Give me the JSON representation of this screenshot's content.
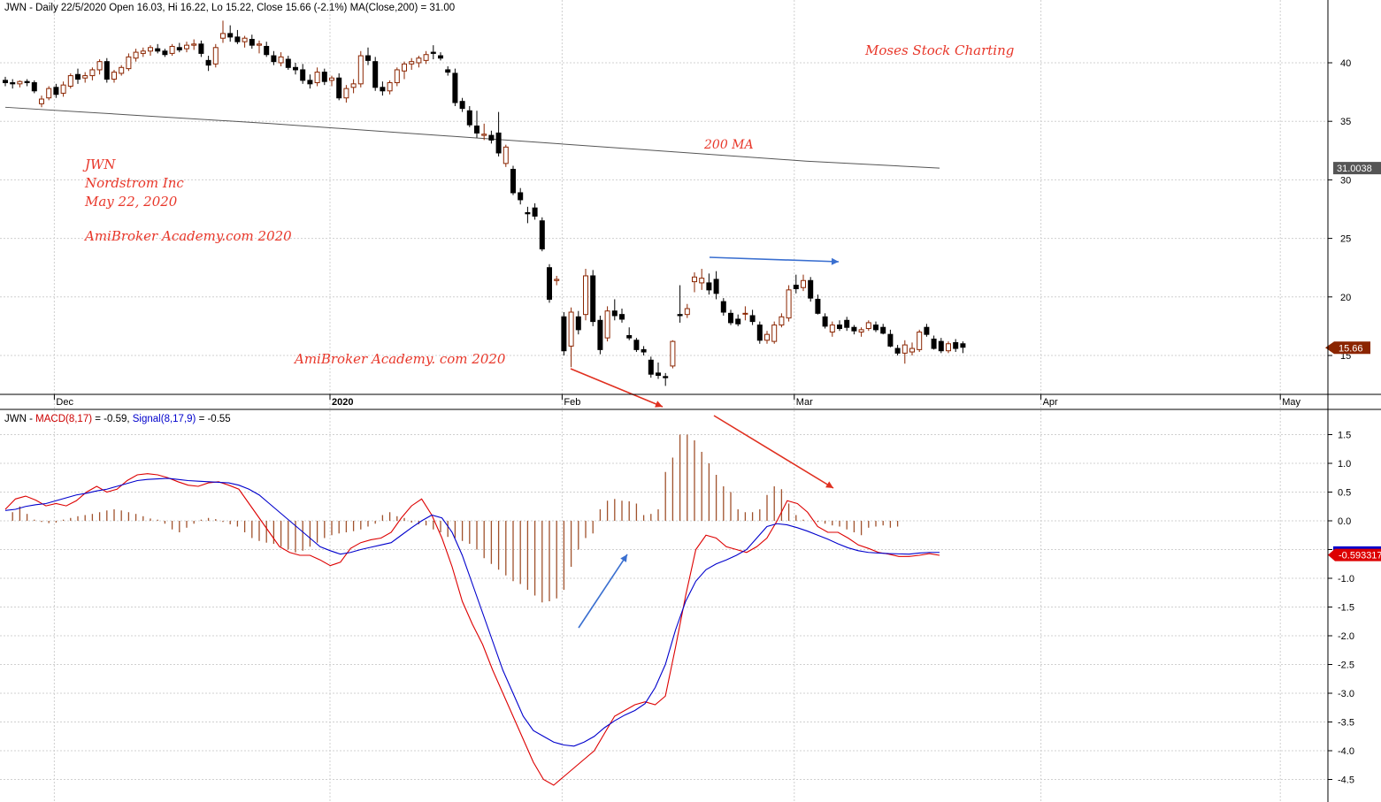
{
  "header": {
    "price_title_parts": [
      {
        "text": "JWN - Daily 22/5/2020 Open 16.03, Hi 16.22, Lo 15.22, Close 15.66 (-2.1%) ",
        "color": "#000000"
      },
      {
        "text": "MA(Close,200) = 31.00",
        "color": "#000000"
      }
    ],
    "macd_title_parts": [
      {
        "text": "JWN - ",
        "color": "#000000"
      },
      {
        "text": "MACD(8,17)",
        "color": "#cc0000"
      },
      {
        "text": " = -0.59, ",
        "color": "#000000"
      },
      {
        "text": "Signal(8,17,9)",
        "color": "#0000cc"
      },
      {
        "text": " = -0.55",
        "color": "#000000"
      }
    ]
  },
  "annotations": {
    "brand": "Moses Stock Charting",
    "ma_label": "200 MA",
    "ticker": "JWN",
    "company": "Nordstrom Inc",
    "date": "May 22, 2020",
    "site1": "AmiBroker Academy.com  2020",
    "site2": "AmiBroker Academy. com  2020"
  },
  "colors": {
    "up": "#8b2500",
    "down": "#000000",
    "macd": "#dd0000",
    "signal": "#0000cc",
    "histogram": "#a0522d",
    "ma": "#555555",
    "arrow_red": "#e03020",
    "arrow_blue": "#3a6fd0",
    "annotation": "#e8372a",
    "grid": "#d0d0d0"
  },
  "chart_data": [
    {
      "type": "candlestick",
      "title": "JWN - Daily 22/5/2020",
      "ylim": [
        11,
        45
      ],
      "yticks": [
        15,
        20,
        25,
        30,
        35,
        40
      ],
      "x_labels": [
        "Dec",
        "2020",
        "Feb",
        "Mar",
        "Apr",
        "May"
      ],
      "x_label_index": [
        7,
        45,
        77,
        109,
        143,
        176
      ],
      "ma200": [
        36.2,
        35.5,
        34.8,
        34.0,
        33.2,
        32.4,
        31.6,
        31.0
      ],
      "price_marker": "15.66",
      "ma_marker": "31.0038",
      "ohlc": [
        [
          38.5,
          38.8,
          38.0,
          38.3
        ],
        [
          38.3,
          38.6,
          37.8,
          38.2
        ],
        [
          38.2,
          38.5,
          37.9,
          38.4
        ],
        [
          38.4,
          38.6,
          38.0,
          38.3
        ],
        [
          38.3,
          38.5,
          37.4,
          37.6
        ],
        [
          36.5,
          37.2,
          36.2,
          36.9
        ],
        [
          37.0,
          38.0,
          36.8,
          37.8
        ],
        [
          37.9,
          38.2,
          37.0,
          37.3
        ],
        [
          37.4,
          38.4,
          37.1,
          38.1
        ],
        [
          38.0,
          39.1,
          37.8,
          38.9
        ],
        [
          39.0,
          39.5,
          38.2,
          38.6
        ],
        [
          38.7,
          39.2,
          38.3,
          38.9
        ],
        [
          38.9,
          39.6,
          38.5,
          39.4
        ],
        [
          39.4,
          40.3,
          39.0,
          40.1
        ],
        [
          40.1,
          40.4,
          38.3,
          38.6
        ],
        [
          38.6,
          39.4,
          38.3,
          39.2
        ],
        [
          39.1,
          39.8,
          38.9,
          39.6
        ],
        [
          39.5,
          40.8,
          39.3,
          40.5
        ],
        [
          40.4,
          41.2,
          40.1,
          40.9
        ],
        [
          40.8,
          41.3,
          40.5,
          41.0
        ],
        [
          41.0,
          41.5,
          40.6,
          41.3
        ],
        [
          41.2,
          41.6,
          40.8,
          41.0
        ],
        [
          41.0,
          41.2,
          40.5,
          40.7
        ],
        [
          40.8,
          41.6,
          40.6,
          41.4
        ],
        [
          41.3,
          41.7,
          40.9,
          41.1
        ],
        [
          41.2,
          41.8,
          40.9,
          41.5
        ],
        [
          41.5,
          42.0,
          41.1,
          41.6
        ],
        [
          41.6,
          41.9,
          40.5,
          40.8
        ],
        [
          40.2,
          40.6,
          39.3,
          39.8
        ],
        [
          39.9,
          41.6,
          39.6,
          41.3
        ],
        [
          42.1,
          43.6,
          41.7,
          42.5
        ],
        [
          42.5,
          43.2,
          41.8,
          42.2
        ],
        [
          42.2,
          42.8,
          41.6,
          41.8
        ],
        [
          41.8,
          42.3,
          41.3,
          42.1
        ],
        [
          42.0,
          42.4,
          41.2,
          41.5
        ],
        [
          41.5,
          41.9,
          40.8,
          41.6
        ],
        [
          41.4,
          41.8,
          40.5,
          40.7
        ],
        [
          40.6,
          41.0,
          39.8,
          40.1
        ],
        [
          40.0,
          40.9,
          39.7,
          40.5
        ],
        [
          40.3,
          40.6,
          39.4,
          39.6
        ],
        [
          39.6,
          40.0,
          39.0,
          39.4
        ],
        [
          39.4,
          39.9,
          38.2,
          38.5
        ],
        [
          38.5,
          39.0,
          37.8,
          38.2
        ],
        [
          38.3,
          39.6,
          38.0,
          39.2
        ],
        [
          39.2,
          39.5,
          38.1,
          38.4
        ],
        [
          38.5,
          38.9,
          38.0,
          38.7
        ],
        [
          38.7,
          39.1,
          36.8,
          37.0
        ],
        [
          37.0,
          38.1,
          36.6,
          37.8
        ],
        [
          37.9,
          38.6,
          37.4,
          38.2
        ],
        [
          38.2,
          41.0,
          37.9,
          40.6
        ],
        [
          40.6,
          41.3,
          39.8,
          40.2
        ],
        [
          40.1,
          40.5,
          37.6,
          37.9
        ],
        [
          37.9,
          38.4,
          37.2,
          37.6
        ],
        [
          37.6,
          38.5,
          37.3,
          38.3
        ],
        [
          38.3,
          39.6,
          38.0,
          39.4
        ],
        [
          39.3,
          40.1,
          38.6,
          39.9
        ],
        [
          39.9,
          40.4,
          39.4,
          40.1
        ],
        [
          40.0,
          40.6,
          39.6,
          40.4
        ],
        [
          40.2,
          41.0,
          39.9,
          40.7
        ],
        [
          40.9,
          41.5,
          40.3,
          40.8
        ],
        [
          40.6,
          40.9,
          40.2,
          40.4
        ],
        [
          39.4,
          39.7,
          38.9,
          39.2
        ],
        [
          39.1,
          39.5,
          36.3,
          36.6
        ],
        [
          36.7,
          37.0,
          35.8,
          36.1
        ],
        [
          35.9,
          36.3,
          34.5,
          34.7
        ],
        [
          34.6,
          35.9,
          33.6,
          34.0
        ],
        [
          33.8,
          34.8,
          33.4,
          33.9
        ],
        [
          33.8,
          34.2,
          33.1,
          33.4
        ],
        [
          34.0,
          35.8,
          32.0,
          32.3
        ],
        [
          31.4,
          33.0,
          31.1,
          32.8
        ],
        [
          30.9,
          31.2,
          28.7,
          28.9
        ],
        [
          28.9,
          29.3,
          27.9,
          28.3
        ],
        [
          27.2,
          27.7,
          26.3,
          27.1
        ],
        [
          27.6,
          28.0,
          26.6,
          26.9
        ],
        [
          26.5,
          26.8,
          23.9,
          24.1
        ],
        [
          22.5,
          22.8,
          19.5,
          19.8
        ],
        [
          21.4,
          21.8,
          21.0,
          21.5
        ],
        [
          18.3,
          18.7,
          15.0,
          15.4
        ],
        [
          15.8,
          19.1,
          14.0,
          18.7
        ],
        [
          18.3,
          18.8,
          16.8,
          17.2
        ],
        [
          18.5,
          22.4,
          18.0,
          21.8
        ],
        [
          21.8,
          22.3,
          17.5,
          17.9
        ],
        [
          18.0,
          18.4,
          15.1,
          15.5
        ],
        [
          16.5,
          19.2,
          16.2,
          18.8
        ],
        [
          18.8,
          19.8,
          18.0,
          18.4
        ],
        [
          18.5,
          19.0,
          17.8,
          18.1
        ],
        [
          16.7,
          17.4,
          16.3,
          16.5
        ],
        [
          16.3,
          16.5,
          15.3,
          15.5
        ],
        [
          15.5,
          15.8,
          15.0,
          15.3
        ],
        [
          14.6,
          14.9,
          13.1,
          13.4
        ],
        [
          13.5,
          14.4,
          13.0,
          13.3
        ],
        [
          13.2,
          13.5,
          12.4,
          13.1
        ],
        [
          14.1,
          16.3,
          13.9,
          16.2
        ],
        [
          18.5,
          21.0,
          17.8,
          18.4
        ],
        [
          18.5,
          19.4,
          18.2,
          19.0
        ],
        [
          21.3,
          22.1,
          20.4,
          21.7
        ],
        [
          21.2,
          22.4,
          20.6,
          21.6
        ],
        [
          21.2,
          22.0,
          20.2,
          20.6
        ],
        [
          21.5,
          22.2,
          19.8,
          20.3
        ],
        [
          19.6,
          19.9,
          18.4,
          18.7
        ],
        [
          18.6,
          18.9,
          17.6,
          17.8
        ],
        [
          18.1,
          18.5,
          17.5,
          17.7
        ],
        [
          18.6,
          19.2,
          18.0,
          18.6
        ],
        [
          18.4,
          18.9,
          17.6,
          17.9
        ],
        [
          17.6,
          17.9,
          16.0,
          16.3
        ],
        [
          16.3,
          17.1,
          16.0,
          16.8
        ],
        [
          16.2,
          17.9,
          16.0,
          17.6
        ],
        [
          17.6,
          18.6,
          17.4,
          18.3
        ],
        [
          18.2,
          21.0,
          17.9,
          20.6
        ],
        [
          21.0,
          21.9,
          20.3,
          20.7
        ],
        [
          20.8,
          21.9,
          20.5,
          21.4
        ],
        [
          21.4,
          21.7,
          19.6,
          19.9
        ],
        [
          19.8,
          20.2,
          18.5,
          18.6
        ],
        [
          18.3,
          18.6,
          17.3,
          17.5
        ],
        [
          17.0,
          17.9,
          16.6,
          17.6
        ],
        [
          17.6,
          18.0,
          17.1,
          17.3
        ],
        [
          18.0,
          18.3,
          17.1,
          17.4
        ],
        [
          17.4,
          17.6,
          16.8,
          17.1
        ],
        [
          17.0,
          17.4,
          16.6,
          17.2
        ],
        [
          17.3,
          18.0,
          17.1,
          17.8
        ],
        [
          17.6,
          17.9,
          17.0,
          17.2
        ],
        [
          17.4,
          17.7,
          16.8,
          16.9
        ],
        [
          16.8,
          17.2,
          15.7,
          15.8
        ],
        [
          15.6,
          15.9,
          15.0,
          15.2
        ],
        [
          15.2,
          16.3,
          14.3,
          15.9
        ],
        [
          15.3,
          16.1,
          15.0,
          15.6
        ],
        [
          15.5,
          17.2,
          15.3,
          17.0
        ],
        [
          17.4,
          17.7,
          16.6,
          16.8
        ],
        [
          16.4,
          16.7,
          15.5,
          15.6
        ],
        [
          16.2,
          16.5,
          15.2,
          15.4
        ],
        [
          15.4,
          16.2,
          15.2,
          16.0
        ],
        [
          16.1,
          16.4,
          15.3,
          15.6
        ],
        [
          16.0,
          16.2,
          15.2,
          15.7
        ]
      ]
    },
    {
      "type": "line",
      "title": "JWN - MACD(8,17) = -0.59, Signal(8,17,9) = -0.55",
      "ylim": [
        -4.85,
        1.85
      ],
      "yticks": [
        1.5,
        1.0,
        0.5,
        0.0,
        -0.5,
        -1.0,
        -1.5,
        -2.0,
        -2.5,
        -3.0,
        -3.5,
        -4.0,
        -4.5
      ],
      "ytick_labels": [
        "1.5",
        "1.0",
        "0.5",
        "0.0",
        "-0.5",
        "-1.0",
        "-1.5",
        "-2.0",
        "-2.5",
        "-3.0",
        "-3.5",
        "-4.0",
        "-4.5"
      ],
      "markers": {
        "signal": "-0.551818",
        "macd": "-0.593317"
      },
      "series": [
        {
          "name": "MACD(8,17)",
          "values": [
            0.2,
            0.38,
            0.43,
            0.36,
            0.26,
            0.3,
            0.26,
            0.35,
            0.5,
            0.6,
            0.5,
            0.55,
            0.7,
            0.8,
            0.82,
            0.8,
            0.75,
            0.68,
            0.62,
            0.6,
            0.66,
            0.68,
            0.62,
            0.55,
            0.3,
            0.05,
            -0.2,
            -0.45,
            -0.55,
            -0.6,
            -0.6,
            -0.68,
            -0.78,
            -0.72,
            -0.48,
            -0.38,
            -0.33,
            -0.3,
            -0.2,
            0.05,
            0.26,
            0.38,
            0.1,
            -0.3,
            -0.8,
            -1.4,
            -1.8,
            -2.15,
            -2.6,
            -3.0,
            -3.4,
            -3.8,
            -4.2,
            -4.5,
            -4.6,
            -4.45,
            -4.3,
            -4.15,
            -4.0,
            -3.7,
            -3.4,
            -3.3,
            -3.2,
            -3.15,
            -3.2,
            -3.05,
            -2.2,
            -1.3,
            -0.5,
            -0.25,
            -0.3,
            -0.45,
            -0.5,
            -0.55,
            -0.45,
            -0.3,
            0.0,
            0.35,
            0.3,
            0.15,
            -0.1,
            -0.2,
            -0.2,
            -0.3,
            -0.42,
            -0.48,
            -0.55,
            -0.58,
            -0.62,
            -0.62,
            -0.6,
            -0.57,
            -0.6
          ],
          "x_start_index": 0
        },
        {
          "name": "Signal(8,17,9)",
          "values": [
            0.18,
            0.2,
            0.25,
            0.28,
            0.3,
            0.35,
            0.4,
            0.45,
            0.48,
            0.52,
            0.55,
            0.6,
            0.65,
            0.7,
            0.72,
            0.73,
            0.74,
            0.72,
            0.7,
            0.69,
            0.68,
            0.67,
            0.66,
            0.62,
            0.55,
            0.45,
            0.3,
            0.15,
            0.0,
            -0.15,
            -0.3,
            -0.45,
            -0.52,
            -0.58,
            -0.55,
            -0.5,
            -0.46,
            -0.42,
            -0.38,
            -0.25,
            -0.12,
            0.0,
            0.1,
            0.05,
            -0.2,
            -0.6,
            -1.1,
            -1.6,
            -2.1,
            -2.6,
            -3.0,
            -3.4,
            -3.65,
            -3.75,
            -3.85,
            -3.9,
            -3.92,
            -3.85,
            -3.75,
            -3.6,
            -3.48,
            -3.38,
            -3.3,
            -3.18,
            -2.9,
            -2.5,
            -1.9,
            -1.4,
            -1.05,
            -0.85,
            -0.75,
            -0.68,
            -0.6,
            -0.5,
            -0.3,
            -0.1,
            -0.05,
            -0.07,
            -0.12,
            -0.18,
            -0.25,
            -0.32,
            -0.4,
            -0.47,
            -0.52,
            -0.55,
            -0.56,
            -0.57,
            -0.575,
            -0.58,
            -0.56,
            -0.55,
            -0.55
          ],
          "x_start_index": 0
        }
      ],
      "histogram": [
        0.0,
        0.15,
        0.25,
        0.12,
        0.02,
        -0.02,
        -0.04,
        -0.03,
        0.02,
        0.05,
        0.08,
        0.1,
        0.12,
        0.15,
        0.18,
        0.2,
        0.18,
        0.15,
        0.12,
        0.08,
        0.04,
        0.02,
        -0.05,
        -0.15,
        -0.2,
        -0.12,
        -0.05,
        0.02,
        0.05,
        0.03,
        -0.02,
        -0.06,
        -0.1,
        -0.2,
        -0.3,
        -0.35,
        -0.38,
        -0.4,
        -0.45,
        -0.5,
        -0.55,
        -0.52,
        -0.45,
        -0.38,
        -0.3,
        -0.25,
        -0.22,
        -0.2,
        -0.18,
        -0.15,
        -0.1,
        -0.05,
        0.1,
        0.15,
        0.08,
        0.05,
        -0.03,
        -0.06,
        -0.08,
        -0.15,
        -0.2,
        -0.28,
        -0.3,
        -0.35,
        -0.4,
        -0.5,
        -0.65,
        -0.75,
        -0.85,
        -0.95,
        -1.05,
        -1.1,
        -1.2,
        -1.3,
        -1.42,
        -1.4,
        -1.35,
        -1.2,
        -0.8,
        -0.5,
        -0.3,
        -0.22,
        0.2,
        0.35,
        0.38,
        0.35,
        0.34,
        0.3,
        0.1,
        0.12,
        0.2,
        0.85,
        1.1,
        1.5,
        1.5,
        1.4,
        1.2,
        1.0,
        0.8,
        0.6,
        0.5,
        0.2,
        0.15,
        0.15,
        0.2,
        0.45,
        0.6,
        0.55,
        0.3,
        0.1,
        0.02,
        0.0,
        -0.02,
        -0.05,
        -0.08,
        -0.1,
        -0.15,
        -0.2,
        -0.25,
        -0.12,
        -0.1,
        -0.08,
        -0.12,
        -0.1
      ]
    }
  ]
}
